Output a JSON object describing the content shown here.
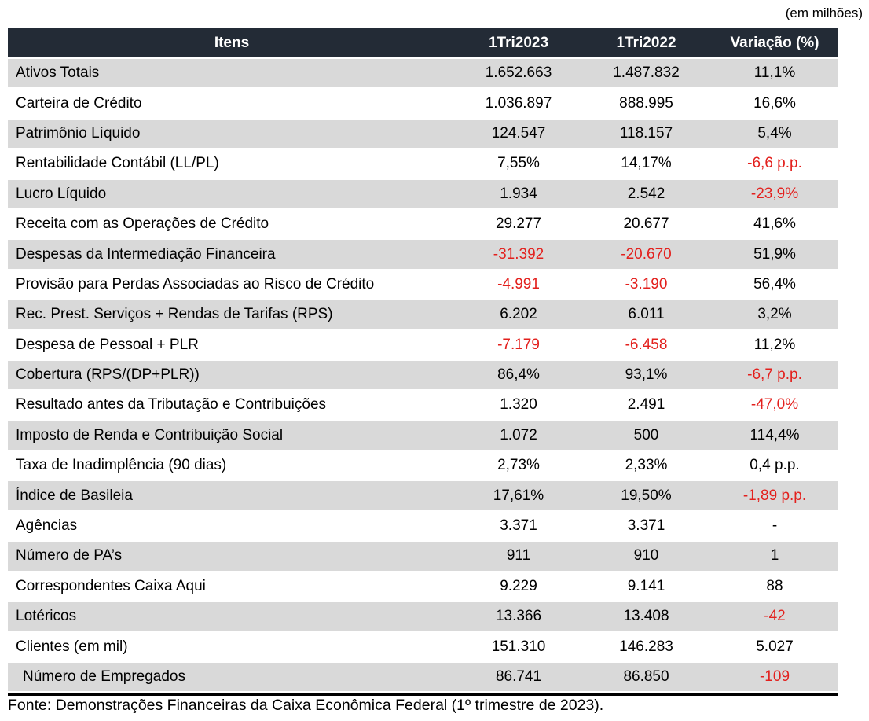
{
  "units_note": "(em milhões)",
  "source_note": "Fonte: Demonstrações Financeiras da Caixa Econômica Federal (1º trimestre de 2023).",
  "colors": {
    "header_bg": "#232B36",
    "header_text": "#FFFFFF",
    "row_alt_bg": "#D9D9D9",
    "row_bg": "#FFFFFF",
    "negative_text": "#E3201D",
    "body_text": "#000000"
  },
  "chart_data": {
    "type": "table",
    "title": "",
    "units_note": "(em milhões)",
    "source": "Fonte: Demonstrações Financeiras da Caixa Econômica Federal (1º trimestre de 2023).",
    "columns": [
      "Itens",
      "1Tri2023",
      "1Tri2022",
      "Variação (%)"
    ],
    "rows": [
      {
        "label": "Ativos Totais",
        "v2023": "1.652.663",
        "v2022": "1.487.832",
        "variacao": "11,1%",
        "red": [
          false,
          false,
          false
        ],
        "indent": false
      },
      {
        "label": "Carteira de Crédito",
        "v2023": "1.036.897",
        "v2022": "888.995",
        "variacao": "16,6%",
        "red": [
          false,
          false,
          false
        ],
        "indent": false
      },
      {
        "label": "Patrimônio Líquido",
        "v2023": "124.547",
        "v2022": "118.157",
        "variacao": "5,4%",
        "red": [
          false,
          false,
          false
        ],
        "indent": false
      },
      {
        "label": "Rentabilidade Contábil (LL/PL)",
        "v2023": "7,55%",
        "v2022": "14,17%",
        "variacao": "-6,6 p.p.",
        "red": [
          false,
          false,
          true
        ],
        "indent": false
      },
      {
        "label": "Lucro Líquido",
        "v2023": "1.934",
        "v2022": "2.542",
        "variacao": "-23,9%",
        "red": [
          false,
          false,
          true
        ],
        "indent": false
      },
      {
        "label": "Receita com as Operações de Crédito",
        "v2023": "29.277",
        "v2022": "20.677",
        "variacao": "41,6%",
        "red": [
          false,
          false,
          false
        ],
        "indent": false
      },
      {
        "label": "Despesas da Intermediação Financeira",
        "v2023": "-31.392",
        "v2022": "-20.670",
        "variacao": "51,9%",
        "red": [
          true,
          true,
          false
        ],
        "indent": false
      },
      {
        "label": "Provisão para Perdas Associadas ao Risco de Crédito",
        "v2023": "-4.991",
        "v2022": "-3.190",
        "variacao": "56,4%",
        "red": [
          true,
          true,
          false
        ],
        "indent": false
      },
      {
        "label": "Rec. Prest. Serviços + Rendas de Tarifas (RPS)",
        "v2023": "6.202",
        "v2022": "6.011",
        "variacao": "3,2%",
        "red": [
          false,
          false,
          false
        ],
        "indent": false
      },
      {
        "label": "Despesa de Pessoal + PLR",
        "v2023": "-7.179",
        "v2022": "-6.458",
        "variacao": "11,2%",
        "red": [
          true,
          true,
          false
        ],
        "indent": false
      },
      {
        "label": "Cobertura (RPS/(DP+PLR))",
        "v2023": "86,4%",
        "v2022": "93,1%",
        "variacao": "-6,7 p.p.",
        "red": [
          false,
          false,
          true
        ],
        "indent": false
      },
      {
        "label": "Resultado antes da Tributação e Contribuições",
        "v2023": "1.320",
        "v2022": "2.491",
        "variacao": "-47,0%",
        "red": [
          false,
          false,
          true
        ],
        "indent": false
      },
      {
        "label": "Imposto de Renda e Contribuição Social",
        "v2023": "1.072",
        "v2022": "500",
        "variacao": "114,4%",
        "red": [
          false,
          false,
          false
        ],
        "indent": false
      },
      {
        "label": "Taxa de Inadimplência (90 dias)",
        "v2023": "2,73%",
        "v2022": "2,33%",
        "variacao": "0,4 p.p.",
        "red": [
          false,
          false,
          false
        ],
        "indent": false
      },
      {
        "label": "Índice de Basileia",
        "v2023": "17,61%",
        "v2022": "19,50%",
        "variacao": "-1,89 p.p.",
        "red": [
          false,
          false,
          true
        ],
        "indent": false
      },
      {
        "label": "Agências",
        "v2023": "3.371",
        "v2022": "3.371",
        "variacao": "-",
        "red": [
          false,
          false,
          false
        ],
        "indent": false
      },
      {
        "label": "Número de PA’s",
        "v2023": "911",
        "v2022": "910",
        "variacao": "1",
        "red": [
          false,
          false,
          false
        ],
        "indent": false
      },
      {
        "label": "Correspondentes Caixa Aqui",
        "v2023": "9.229",
        "v2022": "9.141",
        "variacao": "88",
        "red": [
          false,
          false,
          false
        ],
        "indent": false
      },
      {
        "label": "Lotéricos",
        "v2023": "13.366",
        "v2022": "13.408",
        "variacao": "-42",
        "red": [
          false,
          false,
          true
        ],
        "indent": false
      },
      {
        "label": "Clientes (em mil)",
        "v2023": "151.310",
        "v2022": "146.283",
        "variacao": "5.027",
        "red": [
          false,
          false,
          false
        ],
        "indent": false
      },
      {
        "label": "Número de Empregados",
        "v2023": "86.741",
        "v2022": "86.850",
        "variacao": "-109",
        "red": [
          false,
          false,
          true
        ],
        "indent": true
      }
    ]
  }
}
